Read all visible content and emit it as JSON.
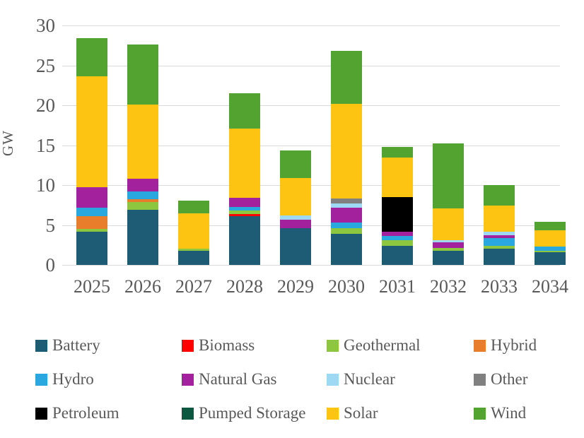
{
  "chart_data": {
    "type": "bar",
    "stacked": true,
    "title": "",
    "xlabel": "",
    "ylabel": "GW",
    "ylim": [
      0,
      30
    ],
    "yticks": [
      0,
      5,
      10,
      15,
      20,
      25,
      30
    ],
    "grid": true,
    "legend_position": "bottom",
    "legend_columns": 4,
    "categories": [
      "2025",
      "2026",
      "2027",
      "2028",
      "2029",
      "2030",
      "2031",
      "2032",
      "2033",
      "2034"
    ],
    "stack_order_bottom_to_top": [
      "Battery",
      "Biomass",
      "Geothermal",
      "Hybrid",
      "Hydro",
      "Natural Gas",
      "Nuclear",
      "Other",
      "Petroleum",
      "Pumped Storage",
      "Solar",
      "Wind"
    ],
    "series": [
      {
        "name": "Battery",
        "color": "#1E5C75",
        "values": [
          4.2,
          6.9,
          1.8,
          6.1,
          4.6,
          3.9,
          2.4,
          1.8,
          2.0,
          1.6
        ]
      },
      {
        "name": "Biomass",
        "color": "#FE0000",
        "values": [
          0,
          0,
          0,
          0.3,
          0,
          0,
          0,
          0,
          0,
          0
        ]
      },
      {
        "name": "Geothermal",
        "color": "#8DC63F",
        "values": [
          0.3,
          1.0,
          0.2,
          0.4,
          0,
          0.7,
          0.7,
          0.3,
          0.4,
          0.2
        ]
      },
      {
        "name": "Hybrid",
        "color": "#E87D2B",
        "values": [
          1.6,
          0.3,
          0,
          0,
          0,
          0,
          0,
          0,
          0,
          0
        ]
      },
      {
        "name": "Hydro",
        "color": "#29A8DF",
        "values": [
          1.1,
          1.0,
          0,
          0.5,
          0,
          0.7,
          0.5,
          0,
          1.0,
          0.5
        ]
      },
      {
        "name": "Natural Gas",
        "color": "#A3219C",
        "values": [
          2.5,
          1.6,
          0,
          1.1,
          1.1,
          1.9,
          0.6,
          0.75,
          0.35,
          0
        ]
      },
      {
        "name": "Nuclear",
        "color": "#9DD9F3",
        "values": [
          0,
          0,
          0,
          0,
          0.5,
          0.5,
          0,
          0.25,
          0.4,
          0
        ]
      },
      {
        "name": "Other",
        "color": "#808080",
        "values": [
          0,
          0,
          0,
          0,
          0,
          0.6,
          0,
          0,
          0,
          0
        ]
      },
      {
        "name": "Petroleum",
        "color": "#000000",
        "values": [
          0,
          0,
          0,
          0,
          0,
          0,
          4.3,
          0,
          0,
          0
        ]
      },
      {
        "name": "Pumped Storage",
        "color": "#0C5740",
        "values": [
          0,
          0,
          0,
          0,
          0,
          0,
          0,
          0,
          0,
          0
        ]
      },
      {
        "name": "Solar",
        "color": "#FDC511",
        "values": [
          13.9,
          9.3,
          4.5,
          8.7,
          4.7,
          11.9,
          5.0,
          4.0,
          3.25,
          2.0
        ]
      },
      {
        "name": "Wind",
        "color": "#52A32F",
        "values": [
          4.8,
          7.5,
          1.6,
          4.4,
          3.4,
          6.6,
          1.3,
          8.1,
          2.6,
          1.1
        ]
      }
    ],
    "totals": [
      28.4,
      27.6,
      8.1,
      21.5,
      14.3,
      26.8,
      14.8,
      15.2,
      10.0,
      5.4
    ],
    "legend_items": [
      "Battery",
      "Biomass",
      "Geothermal",
      "Hybrid",
      "Hydro",
      "Natural Gas",
      "Nuclear",
      "Other",
      "Petroleum",
      "Pumped Storage",
      "Solar",
      "Wind"
    ]
  },
  "layout_text": {
    "y_axis_title": "GW"
  }
}
